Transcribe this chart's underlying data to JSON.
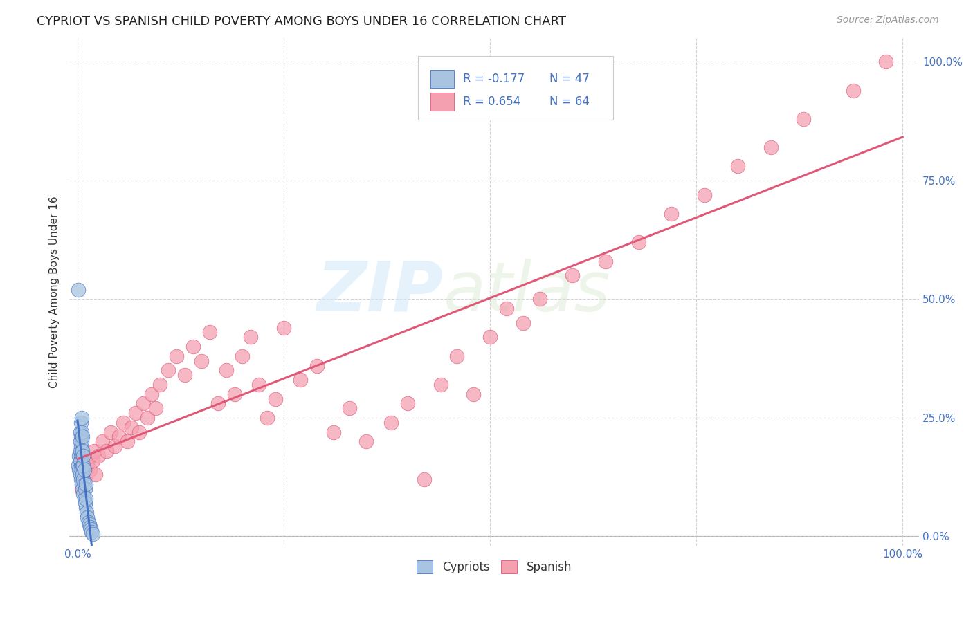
{
  "title": "CYPRIOT VS SPANISH CHILD POVERTY AMONG BOYS UNDER 16 CORRELATION CHART",
  "source": "Source: ZipAtlas.com",
  "ylabel": "Child Poverty Among Boys Under 16",
  "xlim": [
    -0.01,
    1.02
  ],
  "ylim": [
    -0.02,
    1.05
  ],
  "x_ticks": [
    0.0,
    1.0
  ],
  "x_tick_labels": [
    "0.0%",
    "100.0%"
  ],
  "y_ticks": [
    0.0,
    0.25,
    0.5,
    0.75,
    1.0
  ],
  "y_tick_labels": [
    "0.0%",
    "25.0%",
    "50.0%",
    "75.0%",
    "100.0%"
  ],
  "legend_R_cypriot": "R = -0.177",
  "legend_N_cypriot": "N = 47",
  "legend_R_spanish": "R = 0.654",
  "legend_N_spanish": "N = 64",
  "cypriot_color": "#a8c4e0",
  "spanish_color": "#f4a0b0",
  "cypriot_line_color": "#4472c4",
  "spanish_line_color": "#e05878",
  "watermark_zip": "ZIP",
  "watermark_atlas": "atlas",
  "background_color": "#ffffff",
  "grid_color": "#c8c8c8",
  "cypriot_x": [
    0.001,
    0.002,
    0.002,
    0.003,
    0.003,
    0.003,
    0.003,
    0.003,
    0.004,
    0.004,
    0.004,
    0.004,
    0.004,
    0.004,
    0.005,
    0.005,
    0.005,
    0.005,
    0.005,
    0.005,
    0.005,
    0.006,
    0.006,
    0.006,
    0.006,
    0.006,
    0.007,
    0.007,
    0.007,
    0.007,
    0.008,
    0.008,
    0.008,
    0.009,
    0.009,
    0.01,
    0.01,
    0.01,
    0.011,
    0.012,
    0.013,
    0.014,
    0.015,
    0.016,
    0.017,
    0.018,
    0.001
  ],
  "cypriot_y": [
    0.15,
    0.14,
    0.17,
    0.13,
    0.16,
    0.18,
    0.2,
    0.22,
    0.12,
    0.15,
    0.17,
    0.19,
    0.21,
    0.24,
    0.11,
    0.14,
    0.16,
    0.18,
    0.2,
    0.22,
    0.25,
    0.1,
    0.13,
    0.15,
    0.18,
    0.21,
    0.09,
    0.12,
    0.15,
    0.17,
    0.08,
    0.11,
    0.14,
    0.07,
    0.1,
    0.06,
    0.08,
    0.11,
    0.05,
    0.04,
    0.03,
    0.025,
    0.02,
    0.015,
    0.01,
    0.005,
    0.52
  ],
  "spanish_x": [
    0.005,
    0.008,
    0.01,
    0.012,
    0.015,
    0.018,
    0.02,
    0.022,
    0.025,
    0.03,
    0.035,
    0.04,
    0.045,
    0.05,
    0.055,
    0.06,
    0.065,
    0.07,
    0.075,
    0.08,
    0.085,
    0.09,
    0.095,
    0.1,
    0.11,
    0.12,
    0.13,
    0.14,
    0.15,
    0.16,
    0.17,
    0.18,
    0.19,
    0.2,
    0.21,
    0.22,
    0.23,
    0.24,
    0.25,
    0.27,
    0.29,
    0.31,
    0.33,
    0.35,
    0.38,
    0.4,
    0.42,
    0.44,
    0.46,
    0.48,
    0.5,
    0.52,
    0.54,
    0.56,
    0.6,
    0.64,
    0.68,
    0.72,
    0.76,
    0.8,
    0.84,
    0.88,
    0.94,
    0.98
  ],
  "spanish_y": [
    0.1,
    0.12,
    0.13,
    0.15,
    0.14,
    0.16,
    0.18,
    0.13,
    0.17,
    0.2,
    0.18,
    0.22,
    0.19,
    0.21,
    0.24,
    0.2,
    0.23,
    0.26,
    0.22,
    0.28,
    0.25,
    0.3,
    0.27,
    0.32,
    0.35,
    0.38,
    0.34,
    0.4,
    0.37,
    0.43,
    0.28,
    0.35,
    0.3,
    0.38,
    0.42,
    0.32,
    0.25,
    0.29,
    0.44,
    0.33,
    0.36,
    0.22,
    0.27,
    0.2,
    0.24,
    0.28,
    0.12,
    0.32,
    0.38,
    0.3,
    0.42,
    0.48,
    0.45,
    0.5,
    0.55,
    0.58,
    0.62,
    0.68,
    0.72,
    0.78,
    0.82,
    0.88,
    0.94,
    1.0
  ],
  "cypriot_line_x": [
    0.0,
    0.022
  ],
  "spanish_line_x": [
    0.0,
    1.0
  ],
  "title_fontsize": 13,
  "axis_tick_fontsize": 11,
  "ylabel_fontsize": 11
}
